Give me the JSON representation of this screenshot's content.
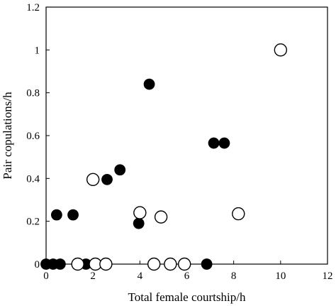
{
  "chart_data": {
    "type": "scatter",
    "title": "",
    "xlabel": "Total female courtship/h",
    "ylabel": "Pair copulations/h",
    "xlim": [
      0,
      12
    ],
    "ylim": [
      0,
      1.2
    ],
    "x_ticks": [
      0,
      2,
      4,
      6,
      8,
      10,
      12
    ],
    "y_ticks": [
      0,
      0.2,
      0.4,
      0.6,
      0.8,
      1,
      1.2
    ],
    "x_tick_labels": [
      "0",
      "2",
      "4",
      "6",
      "8",
      "10",
      "12"
    ],
    "y_tick_labels": [
      "0",
      "0.2",
      "0.4",
      "0.6",
      "0.8",
      "1",
      "1.2"
    ],
    "grid": false,
    "legend": "none",
    "series": [
      {
        "marker": "filled-circle",
        "color": "#000000",
        "points": [
          {
            "x": 0.0,
            "y": 0
          },
          {
            "x": 0.3,
            "y": 0
          },
          {
            "x": 0.6,
            "y": 0
          },
          {
            "x": 1.7,
            "y": 0
          },
          {
            "x": 6.85,
            "y": 0
          },
          {
            "x": 0.45,
            "y": 0.23
          },
          {
            "x": 1.15,
            "y": 0.23
          },
          {
            "x": 2.6,
            "y": 0.395
          },
          {
            "x": 3.15,
            "y": 0.44
          },
          {
            "x": 3.95,
            "y": 0.19
          },
          {
            "x": 4.4,
            "y": 0.84
          },
          {
            "x": 7.15,
            "y": 0.565
          },
          {
            "x": 7.6,
            "y": 0.565
          }
        ]
      },
      {
        "marker": "open-circle",
        "color": "#000000",
        "points": [
          {
            "x": 1.35,
            "y": 0
          },
          {
            "x": 2.1,
            "y": 0
          },
          {
            "x": 2.55,
            "y": 0
          },
          {
            "x": 4.6,
            "y": 0
          },
          {
            "x": 5.3,
            "y": 0
          },
          {
            "x": 5.9,
            "y": 0
          },
          {
            "x": 2.0,
            "y": 0.395
          },
          {
            "x": 4.0,
            "y": 0.24
          },
          {
            "x": 4.9,
            "y": 0.22
          },
          {
            "x": 8.2,
            "y": 0.235
          },
          {
            "x": 10.0,
            "y": 1.0
          }
        ]
      }
    ]
  }
}
